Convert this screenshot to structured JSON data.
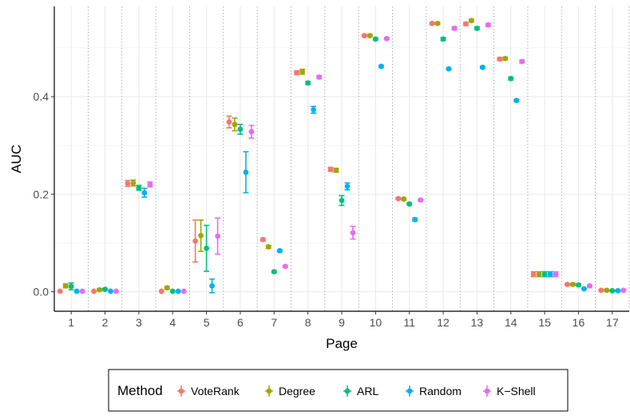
{
  "chart_data": {
    "type": "scatter",
    "title": "",
    "xlabel": "Page",
    "ylabel": "AUC",
    "ylim": [
      -0.04,
      0.585
    ],
    "yticks": [
      0.0,
      0.2,
      0.4
    ],
    "ytick_labels": [
      "0.0",
      "0.2",
      "0.4"
    ],
    "categories": [
      "1",
      "2",
      "3",
      "4",
      "5",
      "6",
      "7",
      "8",
      "9",
      "10",
      "11",
      "12",
      "13",
      "14",
      "15",
      "16",
      "17"
    ],
    "legend": {
      "title": "Method",
      "position": "bottom"
    },
    "series": [
      {
        "name": "VoteRank",
        "color": "#F8766D",
        "values": [
          0.001,
          0.001,
          0.222,
          0.001,
          0.104,
          0.348,
          0.107,
          0.449,
          0.251,
          0.525,
          0.191,
          0.55,
          0.549,
          0.477,
          0.036,
          0.015,
          0.003
        ],
        "errors": [
          0,
          0,
          0.006,
          0,
          0.043,
          0.012,
          0.003,
          0.004,
          0.004,
          0.002,
          0.002,
          0.002,
          0.003,
          0.003,
          0.005,
          0.002,
          0.001
        ]
      },
      {
        "name": "Degree",
        "color": "#A3A500",
        "values": [
          0.012,
          0.004,
          0.223,
          0.008,
          0.115,
          0.343,
          0.092,
          0.451,
          0.249,
          0.525,
          0.19,
          0.55,
          0.556,
          0.478,
          0.036,
          0.015,
          0.003
        ],
        "errors": [
          0.004,
          0.002,
          0.006,
          0.003,
          0.032,
          0.013,
          0.003,
          0.005,
          0.004,
          0.002,
          0.002,
          0.002,
          0.003,
          0.003,
          0.005,
          0.002,
          0.001
        ]
      },
      {
        "name": "ARL",
        "color": "#00BF7D",
        "values": [
          0.011,
          0.005,
          0.213,
          0.001,
          0.089,
          0.333,
          0.041,
          0.428,
          0.187,
          0.518,
          0.18,
          0.518,
          0.54,
          0.437,
          0.036,
          0.014,
          0.002
        ],
        "errors": [
          0.007,
          0.002,
          0.005,
          0,
          0.047,
          0.01,
          0.002,
          0.003,
          0.01,
          0.002,
          0.002,
          0.003,
          0.003,
          0.003,
          0.005,
          0.002,
          0.001
        ]
      },
      {
        "name": "Random",
        "color": "#00B0F6",
        "values": [
          0.001,
          0.001,
          0.203,
          0.001,
          0.012,
          0.245,
          0.084,
          0.373,
          0.216,
          0.462,
          0.148,
          0.457,
          0.46,
          0.392,
          0.036,
          0.006,
          0.002
        ],
        "errors": [
          0,
          0,
          0.009,
          0,
          0.014,
          0.042,
          0.002,
          0.007,
          0.007,
          0.002,
          0.003,
          0.002,
          0.002,
          0.002,
          0.005,
          0.001,
          0.001
        ]
      },
      {
        "name": "K−Shell",
        "color": "#E76BF3",
        "values": [
          0.001,
          0.001,
          0.22,
          0.001,
          0.114,
          0.328,
          0.052,
          0.44,
          0.121,
          0.519,
          0.188,
          0.54,
          0.547,
          0.472,
          0.036,
          0.012,
          0.003
        ],
        "errors": [
          0,
          0,
          0.005,
          0,
          0.037,
          0.013,
          0.002,
          0.003,
          0.013,
          0.002,
          0.002,
          0.003,
          0.003,
          0.003,
          0.005,
          0.002,
          0.001
        ]
      }
    ]
  }
}
